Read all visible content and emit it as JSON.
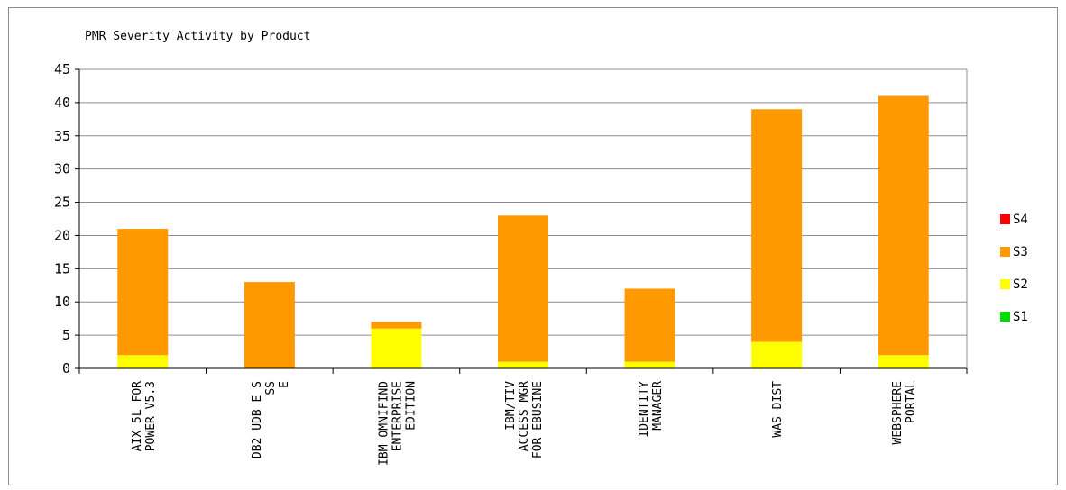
{
  "chart_data": {
    "type": "bar",
    "stacked": true,
    "title": "PMR Severity Activity by Product",
    "xlabel": "",
    "ylabel": "",
    "ylim": [
      0,
      45
    ],
    "yticks": [
      0,
      5,
      10,
      15,
      20,
      25,
      30,
      35,
      40,
      45
    ],
    "grid": true,
    "legend_position": "right",
    "categories": [
      [
        "AIX 5L FOR",
        "POWER V5.3"
      ],
      [
        "DB2 UDB E S",
        "         SS",
        "E"
      ],
      [
        "IBM OMNIFIND",
        "ENTERPRISE",
        "EDITION"
      ],
      [
        "IBM/TIV",
        "ACCESS MGR",
        "FOR EBUSINE"
      ],
      [
        "IDENTITY",
        "MANAGER"
      ],
      [
        "WAS DIST"
      ],
      [
        "WEBSPHERE",
        "PORTAL"
      ]
    ],
    "series": [
      {
        "name": "S1",
        "color": "#00dd00",
        "values": [
          0,
          0,
          0,
          0,
          0,
          0,
          0
        ]
      },
      {
        "name": "S2",
        "color": "#ffff00",
        "values": [
          2,
          0,
          6,
          1,
          1,
          4,
          2
        ]
      },
      {
        "name": "S3",
        "color": "#ff9900",
        "values": [
          19,
          13,
          1,
          22,
          11,
          35,
          39
        ]
      },
      {
        "name": "S4",
        "color": "#ff0000",
        "values": [
          0,
          0,
          0,
          0,
          0,
          0,
          0
        ]
      }
    ]
  }
}
